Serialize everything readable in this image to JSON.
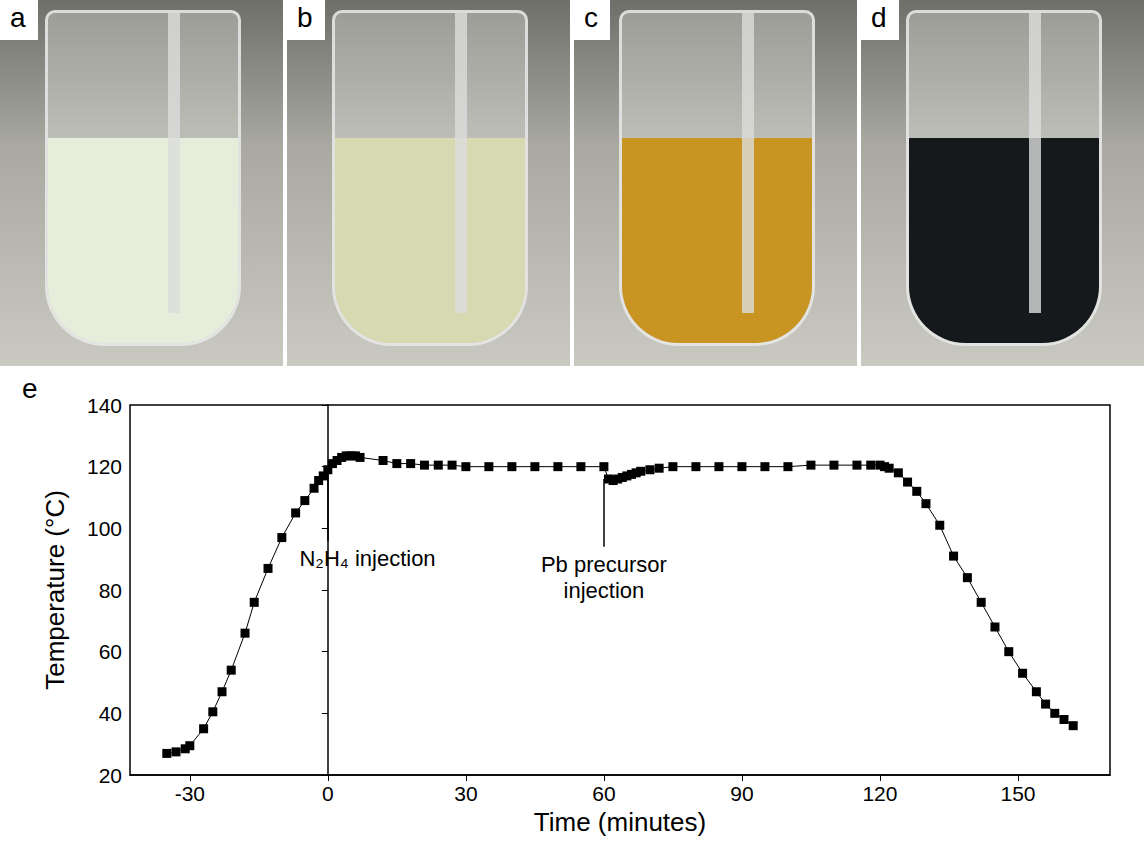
{
  "photos": {
    "labels": [
      "a",
      "b",
      "c",
      "d"
    ]
  },
  "chart_data": {
    "type": "line",
    "panel_label": "e",
    "x_label": "Time (minutes)",
    "y_label": "Temperature (°C)",
    "x": [
      -35,
      -33,
      -31,
      -30,
      -27,
      -25,
      -23,
      -21,
      -18,
      -16,
      -13,
      -10,
      -7,
      -5,
      -3,
      -2,
      -1,
      0,
      1,
      2,
      3,
      4,
      5,
      6,
      7,
      12,
      15,
      18,
      21,
      24,
      27,
      30,
      35,
      40,
      45,
      50,
      55,
      60,
      61,
      62,
      63,
      64,
      65,
      66,
      67,
      68,
      70,
      72,
      75,
      80,
      85,
      90,
      95,
      100,
      105,
      110,
      115,
      118,
      120,
      121,
      122,
      124,
      126,
      128,
      130,
      133,
      136,
      139,
      142,
      145,
      148,
      151,
      154,
      156,
      158,
      160,
      162
    ],
    "values": [
      27,
      27.5,
      28.5,
      29.5,
      35,
      40.5,
      47,
      54,
      66,
      76,
      87,
      97,
      105,
      109,
      113,
      115.5,
      117,
      119,
      121,
      122,
      123,
      123.5,
      123.5,
      123.5,
      123,
      122,
      121,
      121,
      120.5,
      120.5,
      120.5,
      120,
      120,
      120,
      120,
      120,
      120,
      120,
      116,
      115.5,
      116,
      116.5,
      117,
      117.5,
      118,
      118.5,
      119,
      119.5,
      120,
      120,
      120,
      120,
      120,
      120,
      120.5,
      120.5,
      120.5,
      120.5,
      120.5,
      120,
      119.5,
      118,
      115,
      112,
      108,
      101,
      91,
      84,
      76,
      68,
      60,
      53,
      47,
      43,
      40,
      38,
      36
    ],
    "color": "#000000",
    "marker": "square",
    "line_style": "solid",
    "xlim": [
      -43,
      170
    ],
    "xticks": [
      -30,
      0,
      30,
      60,
      90,
      120,
      150
    ],
    "ylim": [
      20,
      140
    ],
    "yticks": [
      20,
      40,
      60,
      80,
      100,
      120,
      140
    ],
    "grid": false,
    "annotations": [
      {
        "text": "N₂H₄ injection",
        "x": 0,
        "y": 118
      },
      {
        "text": "Pb precursor injection",
        "x": 60,
        "y": 116
      }
    ]
  }
}
